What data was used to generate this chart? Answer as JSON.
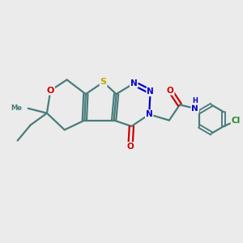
{
  "fig_bg": "#ebebeb",
  "bond_color": "#4a7c7c",
  "bond_width": 1.6,
  "atom_colors": {
    "S": "#bbaa00",
    "O": "#cc0000",
    "N": "#0000cc",
    "Cl": "#228822",
    "C": "#4a7c7c"
  },
  "xlim": [
    0,
    10
  ],
  "ylim": [
    0,
    10
  ]
}
